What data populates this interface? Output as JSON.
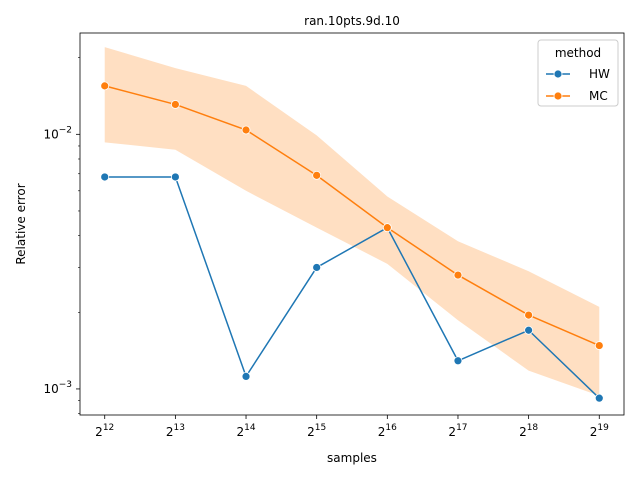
{
  "chart_data": {
    "type": "line",
    "title": "ran.10pts.9d.10",
    "xlabel": "samples",
    "ylabel": "Relative error",
    "x_scale": "log2",
    "y_scale": "log10",
    "x": [
      4096,
      8192,
      16384,
      32768,
      65536,
      131072,
      262144,
      524288
    ],
    "x_tick_labels": [
      {
        "base": "2",
        "exp": "12"
      },
      {
        "base": "2",
        "exp": "13"
      },
      {
        "base": "2",
        "exp": "14"
      },
      {
        "base": "2",
        "exp": "15"
      },
      {
        "base": "2",
        "exp": "16"
      },
      {
        "base": "2",
        "exp": "17"
      },
      {
        "base": "2",
        "exp": "18"
      },
      {
        "base": "2",
        "exp": "19"
      }
    ],
    "y_tick_labels": [
      {
        "value": 0.001,
        "base": "10",
        "exp": "−3"
      },
      {
        "value": 0.01,
        "base": "10",
        "exp": "−2"
      }
    ],
    "ylim": [
      0.00079,
      0.025
    ],
    "grid": false,
    "legend": {
      "title": "method",
      "placement": "top-right"
    },
    "series": [
      {
        "name": "HW",
        "color": "#1f77b4",
        "values": [
          0.0068,
          0.0068,
          0.00112,
          0.003,
          0.0043,
          0.00129,
          0.0017,
          0.00092
        ]
      },
      {
        "name": "MC",
        "color": "#ff7f0e",
        "band_color": "#ffdfc2",
        "values": [
          0.0155,
          0.0131,
          0.0104,
          0.0069,
          0.0043,
          0.0028,
          0.00195,
          0.00148
        ],
        "band_low": [
          0.0093,
          0.0087,
          0.006,
          0.0043,
          0.0031,
          0.00186,
          0.00118,
          0.00094
        ],
        "band_high": [
          0.022,
          0.0182,
          0.0155,
          0.0099,
          0.0057,
          0.0038,
          0.0029,
          0.0021
        ]
      }
    ]
  }
}
